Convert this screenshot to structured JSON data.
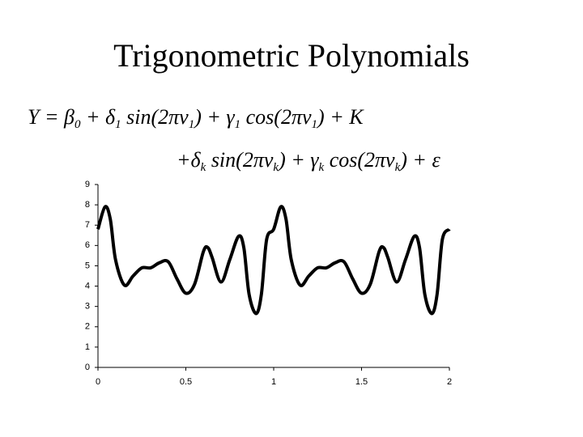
{
  "title": "Trigonometric Polynomials",
  "equation": [
    [
      "Y = β",
      "0",
      " + δ",
      "1",
      " sin(2πν",
      "1",
      ") + γ",
      "1",
      " cos(2πν",
      "1",
      ") + K"
    ],
    [
      "+δ",
      "k",
      " sin(2πν",
      "k",
      ") + γ",
      "k",
      " cos(2πν",
      "k",
      ") + ε"
    ]
  ],
  "chart_data": {
    "type": "line",
    "x": [
      0,
      0.04,
      0.07,
      0.1,
      0.15,
      0.2,
      0.25,
      0.3,
      0.35,
      0.4,
      0.45,
      0.5,
      0.55,
      0.6,
      0.625,
      0.65,
      0.7,
      0.75,
      0.8,
      0.83,
      0.86,
      0.9,
      0.93,
      0.96,
      1,
      1.04,
      1.07,
      1.1,
      1.15,
      1.2,
      1.25,
      1.3,
      1.35,
      1.4,
      1.45,
      1.5,
      1.55,
      1.6,
      1.625,
      1.65,
      1.7,
      1.75,
      1.8,
      1.83,
      1.86,
      1.9,
      1.93,
      1.96,
      2
    ],
    "series": [
      {
        "color": "#000000",
        "values": [
          6.8,
          7.9,
          7.3,
          5.3,
          4.05,
          4.5,
          4.9,
          4.9,
          5.15,
          5.2,
          4.35,
          3.65,
          4.1,
          5.7,
          5.9,
          5.4,
          4.2,
          5.3,
          6.45,
          5.9,
          3.6,
          2.65,
          3.6,
          6.3,
          6.8,
          7.9,
          7.3,
          5.3,
          4.05,
          4.5,
          4.9,
          4.9,
          5.15,
          5.2,
          4.35,
          3.65,
          4.1,
          5.7,
          5.9,
          5.4,
          4.2,
          5.3,
          6.45,
          5.9,
          3.6,
          2.65,
          3.6,
          6.3,
          6.8
        ]
      }
    ],
    "xlim": [
      0,
      2
    ],
    "xticks": [
      0,
      0.5,
      1,
      1.5,
      2
    ],
    "ylim": [
      0,
      9
    ],
    "yticks": [
      0,
      1,
      2,
      3,
      4,
      5,
      6,
      7,
      8,
      9
    ],
    "grid": false
  }
}
